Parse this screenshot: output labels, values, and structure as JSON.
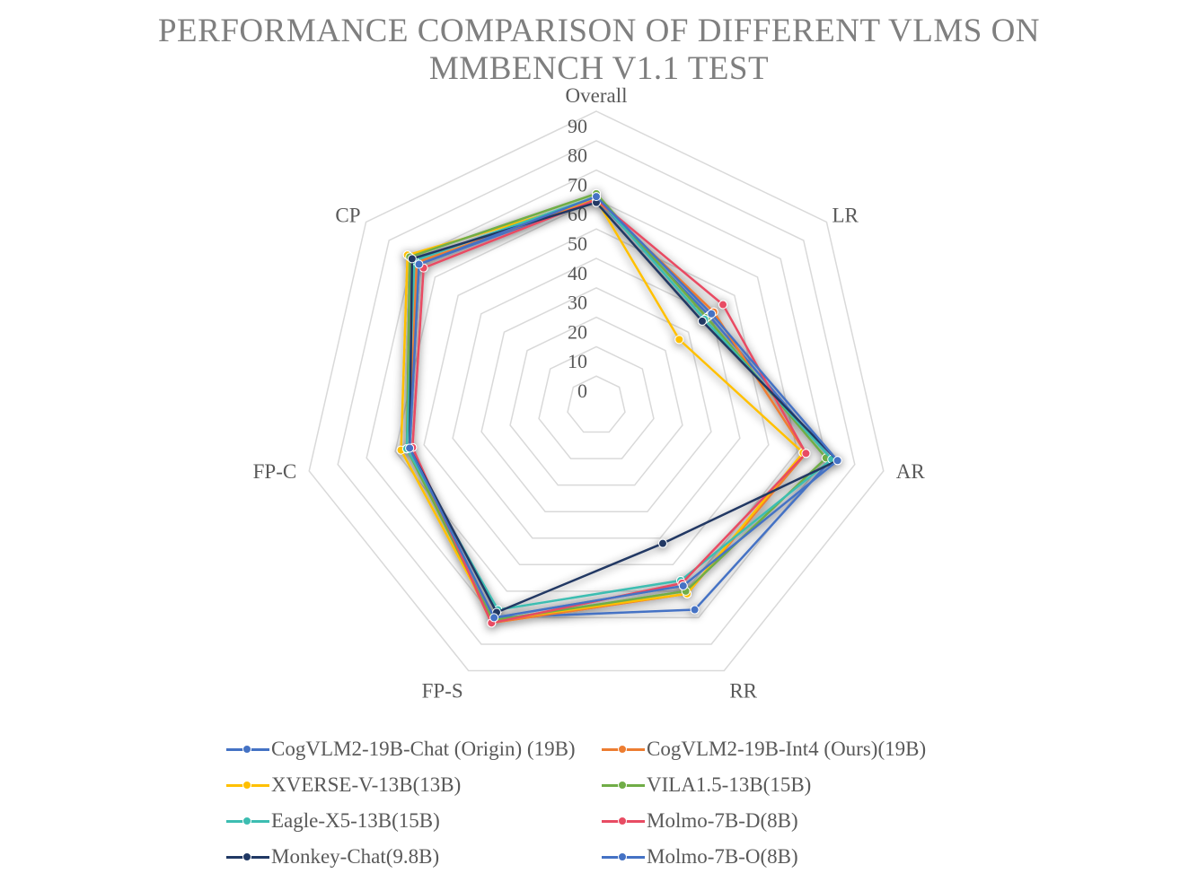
{
  "chart_data": {
    "type": "radar",
    "title": "PERFORMANCE COMPARISON OF DIFFERENT VLMS ON MMBENCH V1.1 TEST",
    "title_lines": [
      "PERFORMANCE COMPARISON OF DIFFERENT VLMS ON",
      "MMBENCH V1.1 TEST"
    ],
    "axes": [
      "Overall",
      "LR",
      "AR",
      "RR",
      "FP-S",
      "FP-C",
      "CP"
    ],
    "r_ticks": [
      "0",
      "10",
      "20",
      "30",
      "40",
      "50",
      "60",
      "70",
      "80",
      "90"
    ],
    "rlim": [
      0,
      100
    ],
    "grid": true,
    "legend_position": "bottom",
    "series": [
      {
        "name": "CogVLM2-19B-Chat (Origin) (19B)",
        "color": "#4472C4",
        "values": [
          70,
          49,
          82,
          77,
          80,
          65,
          77
        ]
      },
      {
        "name": "CogVLM2-19B-Int4 (Ours)(19B)",
        "color": "#ED7D31",
        "values": [
          70,
          51,
          73,
          71,
          82,
          65,
          78
        ]
      },
      {
        "name": "XVERSE-V-13B(13B)",
        "color": "#FFC000",
        "values": [
          70,
          36,
          72,
          71,
          81,
          68,
          82
        ]
      },
      {
        "name": "VILA1.5-13B(15B)",
        "color": "#70AD47",
        "values": [
          72,
          48,
          80,
          70,
          81,
          66,
          81
        ]
      },
      {
        "name": "Eagle-X5-13B(15B)",
        "color": "#3CBDB1",
        "values": [
          71,
          47,
          82,
          66,
          77,
          66,
          79
        ]
      },
      {
        "name": "Molmo-7B-D(8B)",
        "color": "#E84C63",
        "values": [
          70,
          55,
          73,
          67,
          82,
          64,
          75
        ]
      },
      {
        "name": "Monkey-Chat(9.8B)",
        "color": "#203864",
        "values": [
          69,
          46,
          84,
          52,
          78,
          65,
          80
        ]
      },
      {
        "name": "Molmo-7B-O(8B)",
        "color": "#4472C4",
        "values": [
          71,
          50,
          84,
          68,
          80,
          65,
          77
        ]
      }
    ]
  }
}
